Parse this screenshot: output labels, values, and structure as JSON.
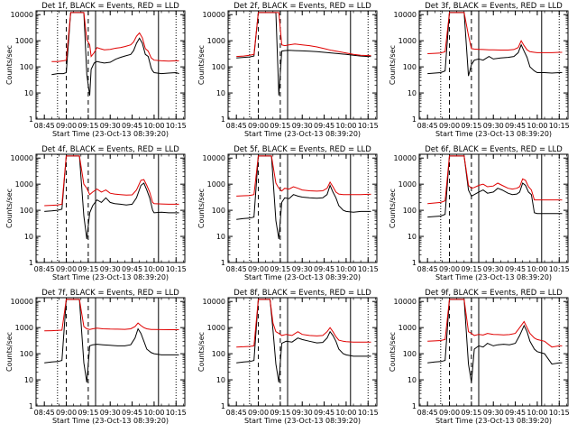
{
  "colors": {
    "events": "#000000",
    "lld": "#e00000",
    "background": "#ffffff"
  },
  "shared_axes": {
    "ylabel": "Counts/sec",
    "xlabel": "Start Time (23-Oct-13 08:39:20)",
    "x_tick_labels": [
      "08:45",
      "09:00",
      "09:15",
      "09:30",
      "09:45",
      "10:00",
      "10:15"
    ],
    "y_tick_labels": [
      "1",
      "10",
      "100",
      "1000",
      "10000"
    ]
  },
  "chart_data": [
    {
      "type": "line",
      "title": "Det 1f, BLACK = Events, RED = LLD",
      "yscale": "log",
      "ylim": [
        1,
        14000
      ],
      "xlim": [
        "08:39:20",
        "10:21"
      ],
      "x": [
        "08:50",
        "08:54",
        "08:58",
        "09:00",
        "09:03",
        "09:06",
        "09:09",
        "09:12",
        "09:14",
        "09:16",
        "09:17",
        "09:19",
        "09:21",
        "09:23",
        "09:26",
        "09:30",
        "09:34",
        "09:37",
        "09:40",
        "09:44",
        "09:46",
        "09:48",
        "09:50",
        "09:52",
        "09:54",
        "09:56",
        "09:58",
        "09:59",
        "10:00",
        "10:05",
        "10:10",
        "10:15",
        "10:17"
      ],
      "series": [
        {
          "name": "BLACK",
          "values": [
            50,
            55,
            55,
            60,
            12000,
            12000,
            12000,
            12000,
            50,
            8,
            80,
            140,
            160,
            150,
            140,
            150,
            200,
            230,
            260,
            300,
            420,
            800,
            1250,
            800,
            300,
            250,
            90,
            70,
            60,
            55,
            58,
            60,
            55
          ]
        },
        {
          "name": "RED",
          "values": [
            160,
            160,
            170,
            180,
            12000,
            12000,
            12000,
            12000,
            1100,
            700,
            250,
            350,
            550,
            500,
            450,
            470,
            520,
            550,
            600,
            700,
            900,
            1500,
            2000,
            1300,
            500,
            400,
            220,
            200,
            180,
            170,
            165,
            170,
            170
          ]
        }
      ]
    },
    {
      "type": "line",
      "title": "Det 2f, BLACK = Events, RED = LLD",
      "yscale": "log",
      "ylim": [
        1,
        14000
      ],
      "xlim": [
        "08:39:20",
        "10:21"
      ],
      "x": [
        "08:45",
        "08:50",
        "08:54",
        "08:57",
        "09:00",
        "09:03",
        "09:06",
        "09:09",
        "09:12",
        "09:14",
        "09:16",
        "09:18",
        "09:21",
        "09:25",
        "09:30",
        "09:35",
        "09:40",
        "09:45",
        "09:50",
        "09:55",
        "10:00",
        "10:05",
        "10:10",
        "10:15",
        "10:17"
      ],
      "series": [
        {
          "name": "BLACK",
          "values": [
            220,
            230,
            240,
            260,
            12000,
            12000,
            12000,
            12000,
            12000,
            8,
            400,
            420,
            430,
            420,
            410,
            400,
            380,
            360,
            340,
            320,
            300,
            280,
            260,
            250,
            250
          ]
        },
        {
          "name": "RED",
          "values": [
            250,
            260,
            280,
            300,
            12000,
            12000,
            12000,
            12000,
            12000,
            12000,
            700,
            650,
            700,
            750,
            700,
            650,
            580,
            500,
            430,
            380,
            340,
            300,
            280,
            270,
            270
          ]
        }
      ]
    },
    {
      "type": "line",
      "title": "Det 3f, BLACK = Events, RED = LLD",
      "yscale": "log",
      "ylim": [
        1,
        14000
      ],
      "xlim": [
        "08:39:20",
        "10:21"
      ],
      "x": [
        "08:45",
        "08:50",
        "08:54",
        "08:57",
        "09:00",
        "09:03",
        "09:06",
        "09:10",
        "09:13",
        "09:15",
        "09:17",
        "09:20",
        "09:23",
        "09:27",
        "09:30",
        "09:35",
        "09:40",
        "09:44",
        "09:47",
        "09:49",
        "09:51",
        "09:53",
        "09:55",
        "09:58",
        "10:00",
        "10:05",
        "10:10",
        "10:15",
        "10:17"
      ],
      "series": [
        {
          "name": "BLACK",
          "values": [
            55,
            58,
            60,
            70,
            12000,
            12000,
            12000,
            12000,
            45,
            120,
            180,
            200,
            180,
            250,
            200,
            220,
            230,
            250,
            350,
            700,
            400,
            230,
            100,
            70,
            60,
            60,
            58,
            60,
            60
          ]
        },
        {
          "name": "RED",
          "values": [
            320,
            330,
            340,
            380,
            12000,
            12000,
            12000,
            12000,
            1600,
            500,
            480,
            470,
            460,
            450,
            450,
            440,
            440,
            460,
            550,
            1000,
            650,
            450,
            380,
            360,
            350,
            350,
            350,
            360,
            360
          ]
        }
      ]
    },
    {
      "type": "line",
      "title": "Det 4f, BLACK = Events, RED = LLD",
      "yscale": "log",
      "ylim": [
        1,
        14000
      ],
      "xlim": [
        "08:39:20",
        "10:21"
      ],
      "x": [
        "08:45",
        "08:50",
        "08:54",
        "08:57",
        "09:00",
        "09:03",
        "09:06",
        "09:09",
        "09:12",
        "09:14",
        "09:16",
        "09:18",
        "09:21",
        "09:24",
        "09:27",
        "09:30",
        "09:33",
        "09:37",
        "09:41",
        "09:45",
        "09:48",
        "09:51",
        "09:53",
        "09:55",
        "09:57",
        "09:59",
        "10:00",
        "10:05",
        "10:10",
        "10:15",
        "10:17"
      ],
      "series": [
        {
          "name": "BLACK",
          "values": [
            90,
            95,
            100,
            110,
            12000,
            12000,
            12000,
            12000,
            60,
            8,
            80,
            150,
            250,
            200,
            300,
            200,
            180,
            170,
            160,
            170,
            300,
            900,
            1100,
            600,
            300,
            100,
            80,
            85,
            80,
            80,
            80
          ]
        },
        {
          "name": "RED",
          "values": [
            150,
            155,
            160,
            170,
            12000,
            12000,
            12000,
            12000,
            1000,
            700,
            400,
            500,
            650,
            500,
            600,
            450,
            420,
            400,
            380,
            390,
            600,
            1400,
            1500,
            900,
            500,
            200,
            180,
            175,
            170,
            170,
            170
          ]
        }
      ]
    },
    {
      "type": "line",
      "title": "Det 5f, BLACK = Events, RED = LLD",
      "yscale": "log",
      "ylim": [
        1,
        14000
      ],
      "xlim": [
        "08:39:20",
        "10:21"
      ],
      "x": [
        "08:45",
        "08:50",
        "08:54",
        "08:57",
        "09:00",
        "09:03",
        "09:06",
        "09:09",
        "09:12",
        "09:14",
        "09:16",
        "09:18",
        "09:21",
        "09:24",
        "09:27",
        "09:30",
        "09:35",
        "09:40",
        "09:44",
        "09:47",
        "09:49",
        "09:51",
        "09:53",
        "09:55",
        "09:58",
        "10:00",
        "10:05",
        "10:10",
        "10:15",
        "10:17"
      ],
      "series": [
        {
          "name": "BLACK",
          "values": [
            45,
            48,
            50,
            55,
            12000,
            12000,
            12000,
            12000,
            40,
            8,
            200,
            300,
            280,
            400,
            350,
            320,
            300,
            290,
            300,
            400,
            900,
            500,
            300,
            150,
            100,
            90,
            85,
            90,
            90,
            90
          ]
        },
        {
          "name": "RED",
          "values": [
            350,
            360,
            370,
            400,
            12000,
            12000,
            12000,
            12000,
            1100,
            700,
            550,
            700,
            650,
            800,
            700,
            600,
            560,
            540,
            560,
            700,
            1200,
            800,
            500,
            420,
            400,
            400,
            400,
            400,
            410,
            410
          ]
        }
      ]
    },
    {
      "type": "line",
      "title": "Det 6f, BLACK = Events, RED = LLD",
      "yscale": "log",
      "ylim": [
        1,
        14000
      ],
      "xlim": [
        "08:39:20",
        "10:21"
      ],
      "x": [
        "08:45",
        "08:50",
        "08:54",
        "08:57",
        "09:00",
        "09:03",
        "09:06",
        "09:10",
        "09:13",
        "09:15",
        "09:17",
        "09:20",
        "09:23",
        "09:26",
        "09:30",
        "09:33",
        "09:36",
        "09:40",
        "09:43",
        "09:46",
        "09:48",
        "09:50",
        "09:52",
        "09:54",
        "09:56",
        "09:58",
        "10:00",
        "10:05",
        "10:10",
        "10:15",
        "10:17"
      ],
      "series": [
        {
          "name": "BLACK",
          "values": [
            55,
            58,
            60,
            70,
            12000,
            12000,
            12000,
            12000,
            600,
            350,
            400,
            500,
            600,
            450,
            500,
            700,
            600,
            450,
            400,
            420,
            500,
            1100,
            900,
            500,
            400,
            80,
            75,
            75,
            75,
            75,
            75
          ]
        },
        {
          "name": "RED",
          "values": [
            180,
            190,
            200,
            230,
            12000,
            12000,
            12000,
            12000,
            900,
            700,
            750,
            900,
            1000,
            800,
            850,
            1100,
            900,
            700,
            650,
            700,
            800,
            1600,
            1400,
            800,
            600,
            250,
            250,
            250,
            250,
            250,
            250
          ]
        }
      ]
    },
    {
      "type": "line",
      "title": "Det 7f, BLACK = Events, RED = LLD",
      "yscale": "log",
      "ylim": [
        1,
        14000
      ],
      "xlim": [
        "08:39:20",
        "10:21"
      ],
      "x": [
        "08:45",
        "08:50",
        "08:54",
        "08:57",
        "09:00",
        "09:03",
        "09:06",
        "09:09",
        "09:12",
        "09:14",
        "09:16",
        "09:18",
        "09:21",
        "09:25",
        "09:30",
        "09:35",
        "09:40",
        "09:44",
        "09:47",
        "09:49",
        "09:51",
        "09:53",
        "09:55",
        "09:58",
        "10:00",
        "10:05",
        "10:10",
        "10:15",
        "10:17"
      ],
      "series": [
        {
          "name": "BLACK",
          "values": [
            45,
            48,
            50,
            55,
            12000,
            12000,
            12000,
            12000,
            45,
            8,
            200,
            220,
            230,
            220,
            210,
            200,
            200,
            220,
            400,
            900,
            600,
            300,
            150,
            110,
            100,
            90,
            90,
            90,
            90
          ]
        },
        {
          "name": "RED",
          "values": [
            750,
            760,
            780,
            800,
            12000,
            12000,
            12000,
            12000,
            1100,
            900,
            850,
            900,
            950,
            900,
            880,
            870,
            860,
            900,
            1100,
            1500,
            1200,
            1000,
            900,
            850,
            850,
            840,
            830,
            830,
            830
          ]
        }
      ]
    },
    {
      "type": "line",
      "title": "Det 8f, BLACK = Events, RED = LLD",
      "yscale": "log",
      "ylim": [
        1,
        14000
      ],
      "xlim": [
        "08:39:20",
        "10:21"
      ],
      "x": [
        "08:45",
        "08:50",
        "08:54",
        "08:57",
        "09:00",
        "09:03",
        "09:06",
        "09:08",
        "09:10",
        "09:12",
        "09:14",
        "09:16",
        "09:19",
        "09:23",
        "09:27",
        "09:30",
        "09:35",
        "09:40",
        "09:44",
        "09:47",
        "09:49",
        "09:51",
        "09:53",
        "09:55",
        "09:58",
        "10:00",
        "10:05",
        "10:10",
        "10:15",
        "10:17"
      ],
      "series": [
        {
          "name": "BLACK",
          "values": [
            45,
            48,
            50,
            55,
            12000,
            12000,
            12000,
            12000,
            800,
            40,
            8,
            250,
            300,
            280,
            400,
            350,
            300,
            260,
            270,
            400,
            700,
            500,
            300,
            150,
            100,
            90,
            80,
            80,
            80,
            80
          ]
        },
        {
          "name": "RED",
          "values": [
            180,
            185,
            190,
            200,
            12000,
            12000,
            12000,
            12000,
            1500,
            700,
            600,
            500,
            550,
            500,
            700,
            550,
            500,
            480,
            500,
            700,
            1000,
            700,
            450,
            330,
            300,
            290,
            280,
            280,
            280,
            280
          ]
        }
      ]
    },
    {
      "type": "line",
      "title": "Det 9f, BLACK = Events, RED = LLD",
      "yscale": "log",
      "ylim": [
        1,
        14000
      ],
      "xlim": [
        "08:39:20",
        "10:21"
      ],
      "x": [
        "08:45",
        "08:50",
        "08:54",
        "08:57",
        "09:00",
        "09:03",
        "09:06",
        "09:10",
        "09:13",
        "09:15",
        "09:17",
        "09:20",
        "09:23",
        "09:26",
        "09:30",
        "09:33",
        "09:37",
        "09:41",
        "09:45",
        "09:48",
        "09:51",
        "09:53",
        "09:55",
        "09:58",
        "10:00",
        "10:05",
        "10:10",
        "10:15",
        "10:17"
      ],
      "series": [
        {
          "name": "BLACK",
          "values": [
            45,
            48,
            50,
            55,
            12000,
            12000,
            12000,
            12000,
            40,
            8,
            150,
            200,
            180,
            250,
            200,
            220,
            230,
            220,
            250,
            500,
            1200,
            700,
            300,
            150,
            120,
            100,
            40,
            45,
            45
          ]
        },
        {
          "name": "RED",
          "values": [
            300,
            310,
            320,
            350,
            12000,
            12000,
            12000,
            12000,
            700,
            600,
            500,
            550,
            520,
            600,
            550,
            540,
            530,
            540,
            600,
            1000,
            1700,
            1000,
            600,
            400,
            350,
            300,
            180,
            200,
            200
          ]
        }
      ]
    }
  ]
}
